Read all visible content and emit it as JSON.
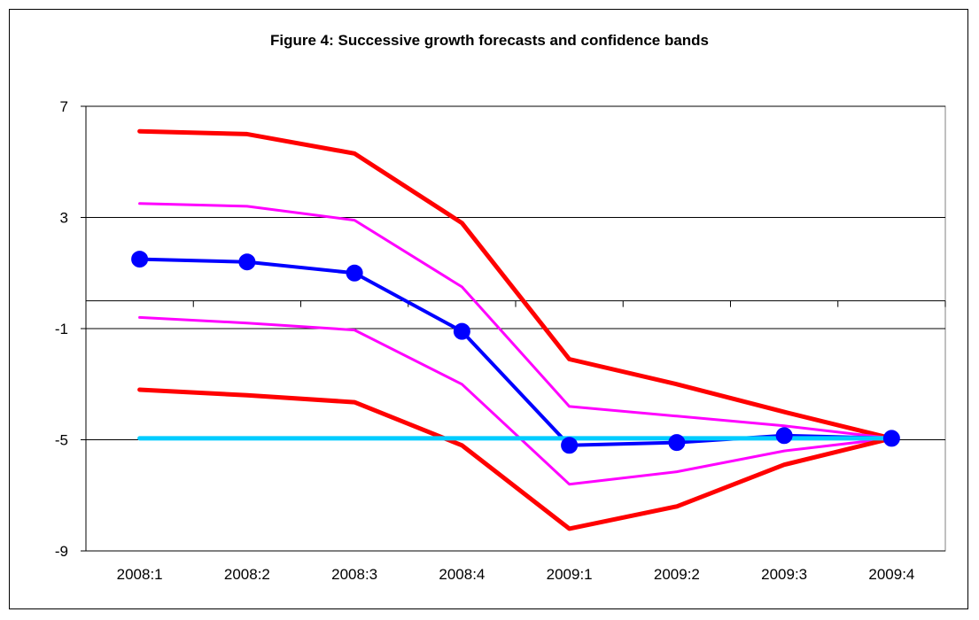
{
  "chart_data": {
    "type": "line",
    "title": "Figure 4: Successive growth forecasts and confidence bands",
    "xlabel": "",
    "ylabel": "",
    "categories": [
      "2008:1",
      "2008:2",
      "2008:3",
      "2008:4",
      "2009:1",
      "2009:2",
      "2009:3",
      "2009:4"
    ],
    "ylim": [
      -9,
      7
    ],
    "yticks": [
      7,
      3,
      -1,
      -5,
      -9
    ],
    "x_axis_crossing": 0,
    "grid": true,
    "legend": "none",
    "series": [
      {
        "values": [
          6.1,
          6.0,
          5.3,
          2.8,
          -2.1,
          -3.0,
          -4.0,
          -4.95
        ],
        "color": "#ff0000",
        "width": 5,
        "markers": false
      },
      {
        "values": [
          3.5,
          3.4,
          2.9,
          0.5,
          -3.8,
          -4.15,
          -4.5,
          -4.95
        ],
        "color": "#ff00ff",
        "width": 3,
        "markers": false
      },
      {
        "values": [
          1.5,
          1.4,
          1.0,
          -1.1,
          -5.2,
          -5.1,
          -4.85,
          -4.95
        ],
        "color": "#0000ff",
        "width": 4,
        "markers": true
      },
      {
        "values": [
          -0.6,
          -0.8,
          -1.05,
          -3.0,
          -6.6,
          -6.15,
          -5.4,
          -4.95
        ],
        "color": "#ff00ff",
        "width": 3,
        "markers": false
      },
      {
        "values": [
          -3.2,
          -3.4,
          -3.65,
          -5.2,
          -8.2,
          -7.4,
          -5.9,
          -4.95
        ],
        "color": "#ff0000",
        "width": 5,
        "markers": false
      },
      {
        "values": [
          -4.95,
          -4.95,
          -4.95,
          -4.95,
          -4.95,
          -4.95,
          -4.95,
          -4.95
        ],
        "color": "#00ccff",
        "width": 5,
        "markers": false
      }
    ]
  }
}
